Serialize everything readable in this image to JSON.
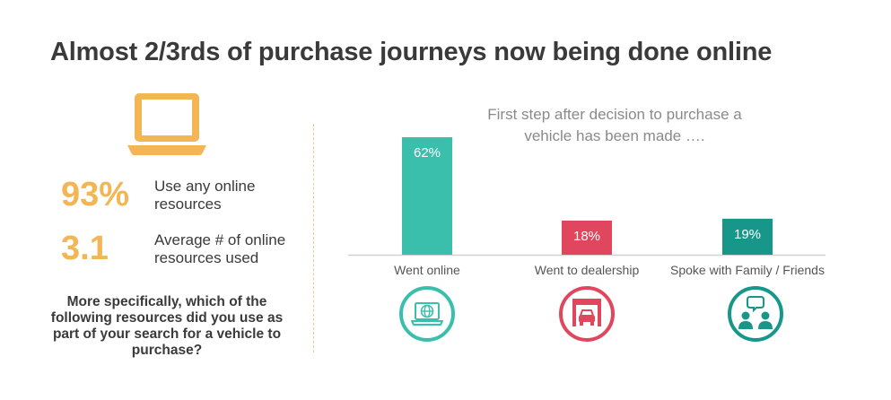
{
  "title": "Almost 2/3rds of purchase journeys now being done online",
  "icons": {
    "laptop": "laptop-icon",
    "went_online": "laptop-globe-icon",
    "went_to_dealership": "dealership-car-icon",
    "spoke_with_family": "people-chat-icon"
  },
  "colors": {
    "orange": "#f2b654",
    "teal": "#3bbfad",
    "red": "#e0475f",
    "dark_teal": "#17978a"
  },
  "stats": [
    {
      "value": "93%",
      "label": "Use any online resources"
    },
    {
      "value": "3.1",
      "label": "Average # of online resources used"
    }
  ],
  "question": "More specifically, which of the following resources did you use as part of your search for a vehicle to purchase?",
  "chart_data": {
    "type": "bar",
    "subtitle": "First step after decision to purchase a vehicle has been made ….",
    "categories": [
      "Went online",
      "Went to dealership",
      "Spoke with Family / Friends"
    ],
    "values": [
      62,
      18,
      19
    ],
    "value_labels": [
      "62%",
      "18%",
      "19%"
    ],
    "bar_colors": [
      "#3bbfad",
      "#e0475f",
      "#17978a"
    ],
    "ylim": [
      0,
      62
    ],
    "xlabel": "",
    "ylabel": ""
  }
}
